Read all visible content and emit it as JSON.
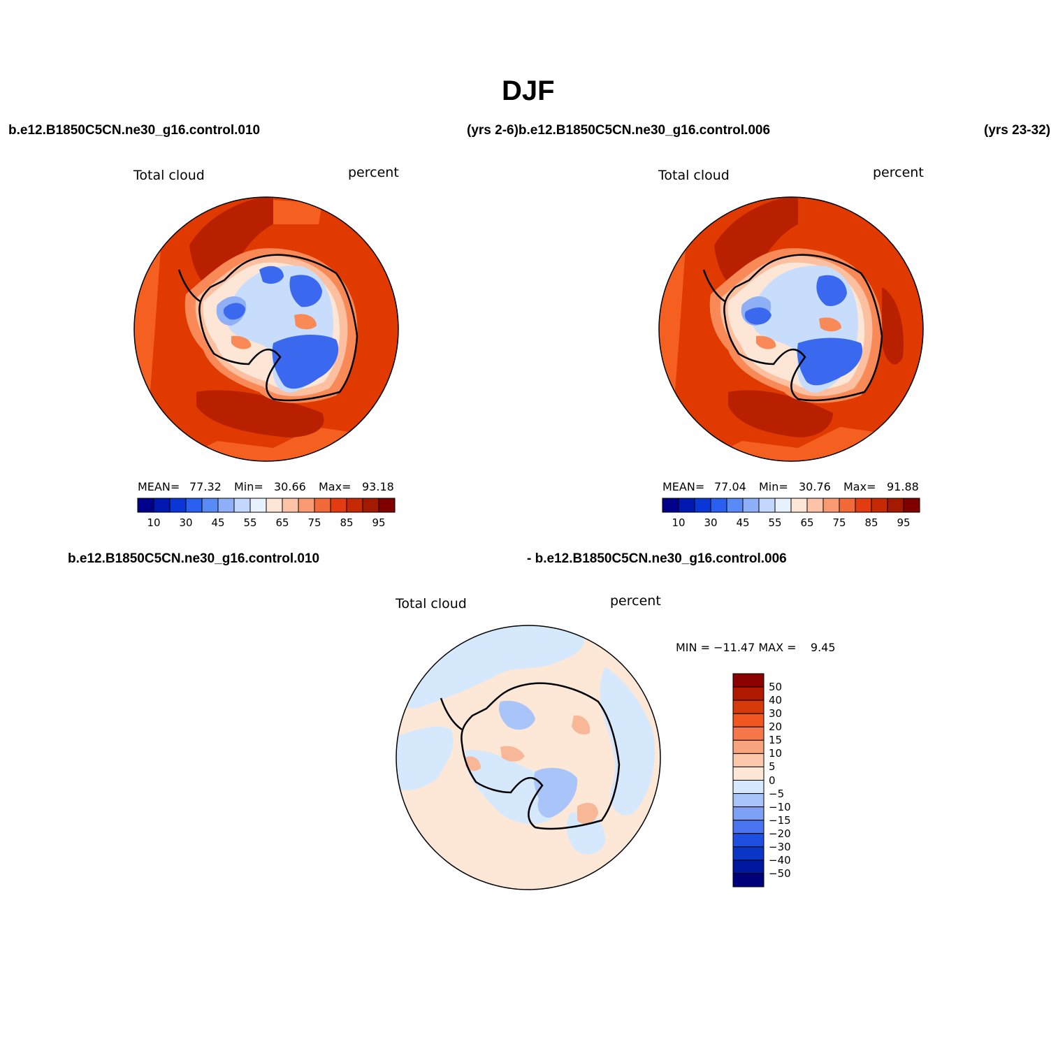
{
  "page_title": "DJF",
  "header": {
    "left_case": "b.e12.B1850C5CN.ne30_g16.control.010",
    "middle_case": "(yrs 2-6)b.e12.B1850C5CN.ne30_g16.control.006",
    "right_case": "(yrs 23-32)"
  },
  "diff_header": {
    "left_case": "b.e12.B1850C5CN.ne30_g16.control.010",
    "right_case": "- b.e12.B1850C5CN.ne30_g16.control.006"
  },
  "panels": [
    {
      "variable_label": "Total cloud",
      "units_label": "percent",
      "stats": {
        "mean_label": "MEAN=",
        "mean": "77.32",
        "min_label": "Min=",
        "min": "30.66",
        "max_label": "Max=",
        "max": "93.18"
      }
    },
    {
      "variable_label": "Total cloud",
      "units_label": "percent",
      "stats": {
        "mean_label": "MEAN=",
        "mean": "77.04",
        "min_label": "Min=",
        "min": "30.76",
        "max_label": "Max=",
        "max": "91.88"
      }
    }
  ],
  "diff_panel": {
    "variable_label": "Total cloud",
    "units_label": "percent",
    "stats_text": "MIN = −11.47 MAX =    9.45"
  },
  "colorbar_abs": {
    "colors": [
      "#00008b",
      "#0018b0",
      "#0a36d6",
      "#2b5ff0",
      "#5a8af5",
      "#8fb0f8",
      "#c3d6fb",
      "#e8f1fe",
      "#fde6d8",
      "#fcc3a8",
      "#f99a72",
      "#f26a3a",
      "#e23c10",
      "#c62a05",
      "#a41a00",
      "#800000"
    ],
    "ticks": [
      "10",
      "30",
      "45",
      "55",
      "65",
      "75",
      "85",
      "95"
    ]
  },
  "colorbar_diff": {
    "colors": [
      "#8b0000",
      "#b01800",
      "#d63a0a",
      "#f0561f",
      "#f5784a",
      "#f8a47e",
      "#fbc8ab",
      "#fde8d8",
      "#d6e8fc",
      "#a8c4f8",
      "#7ea0f5",
      "#4a74f0",
      "#1f4fe0",
      "#0a36c6",
      "#0018a0",
      "#00007a"
    ],
    "ticks": [
      "50",
      "40",
      "30",
      "20",
      "15",
      "10",
      "5",
      "0",
      "−5",
      "−10",
      "−15",
      "−20",
      "−30",
      "−40",
      "−50"
    ]
  },
  "map_colors": {
    "ocean_dark": "#b82000",
    "ocean_main": "#e03a00",
    "ocean_light": "#f56020",
    "coast_ring_1": "#f98a58",
    "coast_ring_2": "#fcc0a0",
    "coast_ring_3": "#fde6d6",
    "ice_light": "#c8dcfb",
    "ice_mid": "#8fb0f5",
    "ice_dark": "#3a68ee",
    "diff_pos": "#fde8d8",
    "diff_neg": "#d6e8fc",
    "diff_neg2": "#a8c4f8",
    "diff_pos2": "#f8b898"
  }
}
